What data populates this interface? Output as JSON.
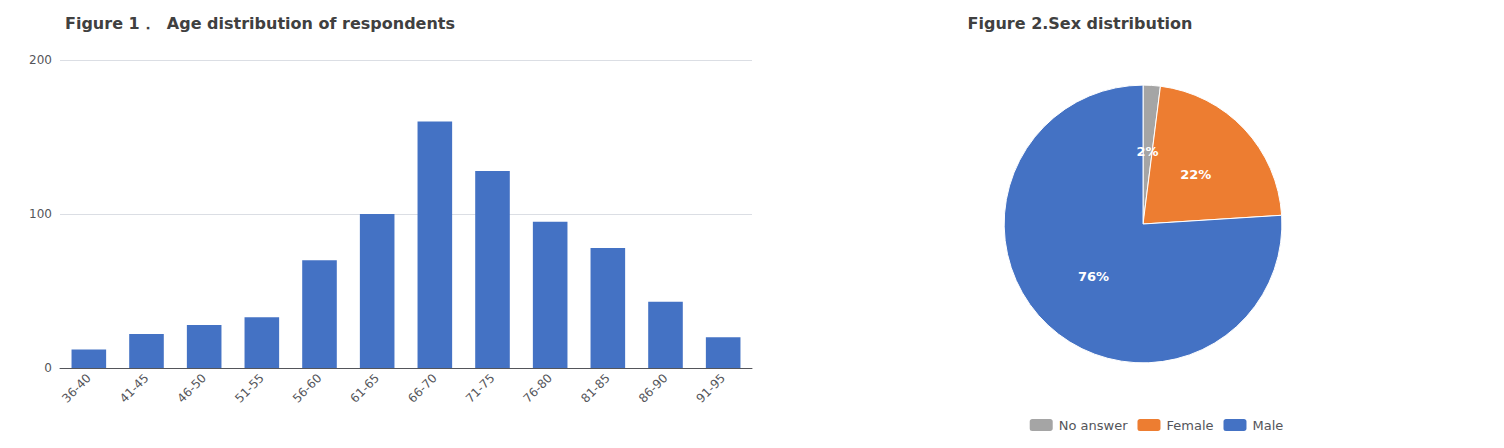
{
  "chart_data": [
    {
      "type": "bar",
      "title": "Figure 1．  Age distribution of respondents",
      "categories": [
        "36-40",
        "41-45",
        "46-50",
        "51-55",
        "56-60",
        "61-65",
        "66-70",
        "71-75",
        "76-80",
        "81-85",
        "86-90",
        "91-95"
      ],
      "values": [
        12,
        22,
        28,
        33,
        70,
        100,
        160,
        128,
        95,
        78,
        43,
        20
      ],
      "color": "#4472C4",
      "ylim": [
        0,
        200
      ],
      "yticks": [
        0,
        100,
        200
      ],
      "grid": true
    },
    {
      "type": "pie",
      "title": "Figure 2.Sex distribution",
      "categories": [
        "No answer",
        "Female",
        "Male"
      ],
      "values": [
        2,
        22,
        76
      ],
      "value_labels": [
        "2%",
        "22%",
        "76%"
      ],
      "colors": [
        "#A5A5A5",
        "#ED7D31",
        "#4472C4"
      ],
      "data_labels": true,
      "legend": "bottom"
    }
  ]
}
